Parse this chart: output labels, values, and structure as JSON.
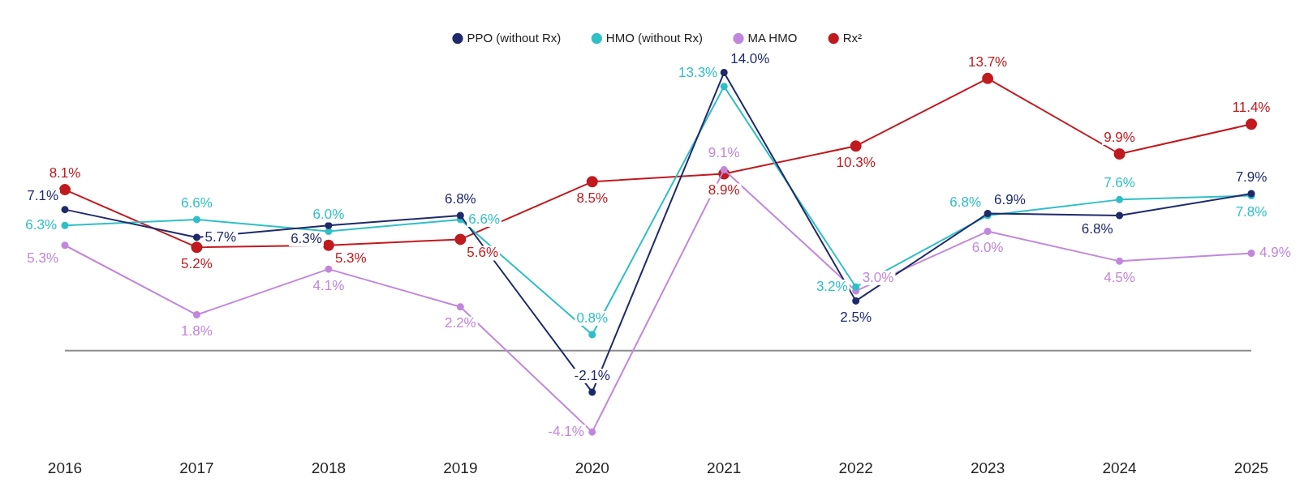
{
  "chart_data": {
    "type": "line",
    "categories": [
      "2016",
      "2017",
      "2018",
      "2019",
      "2020",
      "2021",
      "2022",
      "2023",
      "2024",
      "2025"
    ],
    "series": [
      {
        "name": "PPO (without Rx)",
        "color": "#1f2a6b",
        "values": [
          7.1,
          5.7,
          6.3,
          6.8,
          -2.1,
          14.0,
          2.5,
          6.9,
          6.8,
          7.9
        ],
        "value_labels": [
          "7.1%",
          "5.7%",
          "6.3%",
          "6.8%",
          "-2.1%",
          "14.0%",
          "2.5%",
          "6.9%",
          "6.8%",
          "7.9%"
        ]
      },
      {
        "name": "HMO (without Rx)",
        "color": "#2fbfc6",
        "values": [
          6.3,
          6.6,
          6.0,
          6.6,
          0.8,
          13.3,
          3.2,
          6.8,
          7.6,
          7.8
        ],
        "value_labels": [
          "6.3%",
          "6.6%",
          "6.0%",
          "6.6%",
          "0.8%",
          "13.3%",
          "3.2%",
          "6.8%",
          "7.6%",
          "7.8%"
        ]
      },
      {
        "name": "MA HMO",
        "color": "#c187dc",
        "values": [
          5.3,
          1.8,
          4.1,
          2.2,
          -4.1,
          9.1,
          3.0,
          6.0,
          4.5,
          4.9
        ],
        "value_labels": [
          "5.3%",
          "1.8%",
          "4.1%",
          "2.2%",
          "-4.1%",
          "9.1%",
          "3.0%",
          "6.0%",
          "4.5%",
          "4.9%"
        ]
      },
      {
        "name": "Rx²",
        "color": "#c01a1f",
        "values": [
          8.1,
          5.2,
          5.3,
          5.6,
          8.5,
          8.9,
          10.3,
          13.7,
          9.9,
          11.4
        ],
        "value_labels": [
          "8.1%",
          "5.2%",
          "5.3%",
          "5.6%",
          "8.5%",
          "8.9%",
          "10.3%",
          "13.7%",
          "9.9%",
          "11.4%"
        ]
      }
    ],
    "tick_labels": "x",
    "legend": "top",
    "marker": "circle",
    "line_style": "solid"
  }
}
